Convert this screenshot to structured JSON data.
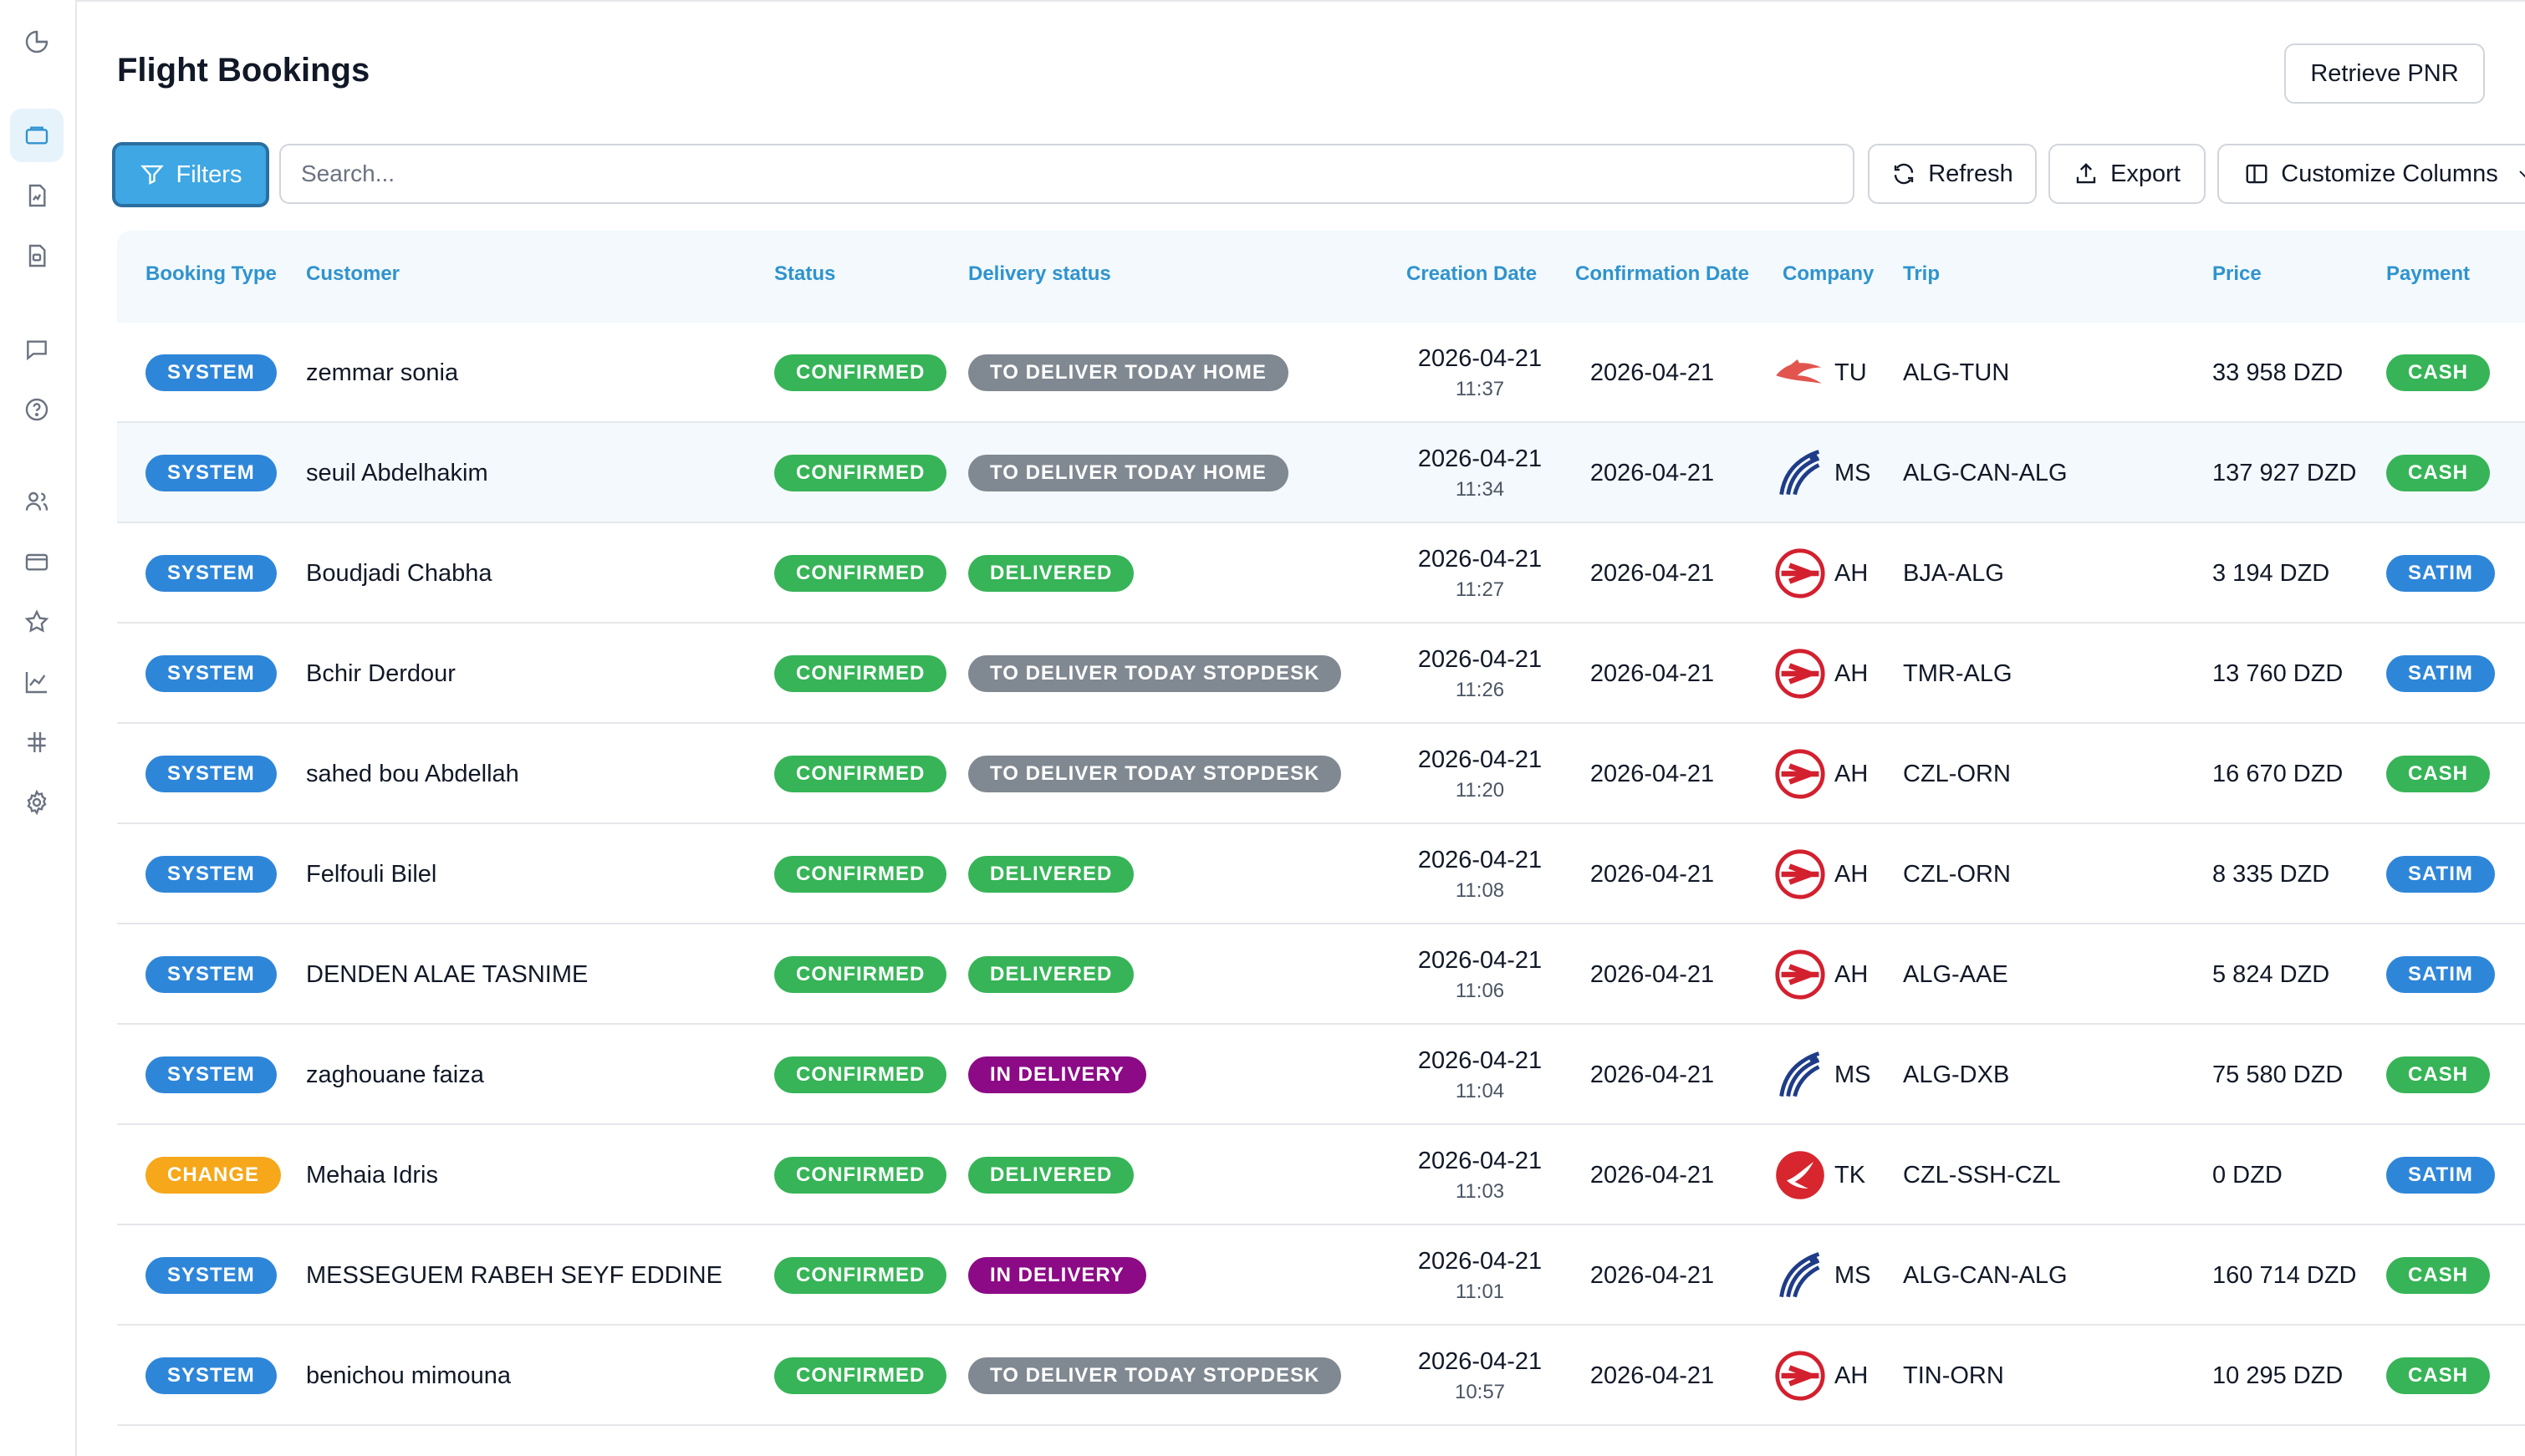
{
  "sidebar": {
    "icons": [
      "pie-chart-icon",
      "ticket-icon",
      "file-chart-icon",
      "file-ticket-icon",
      "message-icon",
      "help-icon",
      "users-icon",
      "card-icon",
      "star-icon",
      "line-chart-icon",
      "hash-icon",
      "gear-icon"
    ]
  },
  "header": {
    "title": "Flight Bookings",
    "retrieve_label": "Retrieve PNR"
  },
  "toolbar": {
    "filters_label": "Filters",
    "search_placeholder": "Search...",
    "refresh_label": "Refresh",
    "export_label": "Export",
    "columns_label": "Customize Columns"
  },
  "table": {
    "columns": {
      "booking_type": "Booking Type",
      "customer": "Customer",
      "status": "Status",
      "delivery": "Delivery status",
      "creation": "Creation Date",
      "confirmation": "Confirmation Date",
      "company": "Company",
      "trip": "Trip",
      "price": "Price",
      "payment": "Payment"
    },
    "rows": [
      {
        "type": "SYSTEM",
        "customer": "zemmar sonia",
        "status": "CONFIRMED",
        "delivery": "TO DELIVER TODAY HOME",
        "cdate": "2026-04-21",
        "ctime": "11:37",
        "confirm": "2026-04-21",
        "company": "TU",
        "logo": "tunisair",
        "trip": "ALG-TUN",
        "price": "33 958 DZD",
        "payment": "CASH"
      },
      {
        "type": "SYSTEM",
        "customer": "seuil Abdelhakim",
        "status": "CONFIRMED",
        "delivery": "TO DELIVER TODAY HOME",
        "cdate": "2026-04-21",
        "ctime": "11:34",
        "confirm": "2026-04-21",
        "company": "MS",
        "logo": "egyptair",
        "trip": "ALG-CAN-ALG",
        "price": "137 927 DZD",
        "payment": "CASH"
      },
      {
        "type": "SYSTEM",
        "customer": "Boudjadi Chabha",
        "status": "CONFIRMED",
        "delivery": "DELIVERED",
        "cdate": "2026-04-21",
        "ctime": "11:27",
        "confirm": "2026-04-21",
        "company": "AH",
        "logo": "airalgerie",
        "trip": "BJA-ALG",
        "price": "3 194 DZD",
        "payment": "SATIM"
      },
      {
        "type": "SYSTEM",
        "customer": "Bchir Derdour",
        "status": "CONFIRMED",
        "delivery": "TO DELIVER TODAY STOPDESK",
        "cdate": "2026-04-21",
        "ctime": "11:26",
        "confirm": "2026-04-21",
        "company": "AH",
        "logo": "airalgerie",
        "trip": "TMR-ALG",
        "price": "13 760 DZD",
        "payment": "SATIM"
      },
      {
        "type": "SYSTEM",
        "customer": "sahed bou Abdellah",
        "status": "CONFIRMED",
        "delivery": "TO DELIVER TODAY STOPDESK",
        "cdate": "2026-04-21",
        "ctime": "11:20",
        "confirm": "2026-04-21",
        "company": "AH",
        "logo": "airalgerie",
        "trip": "CZL-ORN",
        "price": "16 670 DZD",
        "payment": "CASH"
      },
      {
        "type": "SYSTEM",
        "customer": "Felfouli Bilel",
        "status": "CONFIRMED",
        "delivery": "DELIVERED",
        "cdate": "2026-04-21",
        "ctime": "11:08",
        "confirm": "2026-04-21",
        "company": "AH",
        "logo": "airalgerie",
        "trip": "CZL-ORN",
        "price": "8 335 DZD",
        "payment": "SATIM"
      },
      {
        "type": "SYSTEM",
        "customer": "DENDEN ALAE TASNIME",
        "status": "CONFIRMED",
        "delivery": "DELIVERED",
        "cdate": "2026-04-21",
        "ctime": "11:06",
        "confirm": "2026-04-21",
        "company": "AH",
        "logo": "airalgerie",
        "trip": "ALG-AAE",
        "price": "5 824 DZD",
        "payment": "SATIM"
      },
      {
        "type": "SYSTEM",
        "customer": "zaghouane faiza",
        "status": "CONFIRMED",
        "delivery": "IN DELIVERY",
        "cdate": "2026-04-21",
        "ctime": "11:04",
        "confirm": "2026-04-21",
        "company": "MS",
        "logo": "egyptair",
        "trip": "ALG-DXB",
        "price": "75 580 DZD",
        "payment": "CASH"
      },
      {
        "type": "CHANGE",
        "customer": "Mehaia Idris",
        "status": "CONFIRMED",
        "delivery": "DELIVERED",
        "cdate": "2026-04-21",
        "ctime": "11:03",
        "confirm": "2026-04-21",
        "company": "TK",
        "logo": "turkish",
        "trip": "CZL-SSH-CZL",
        "price": "0 DZD",
        "payment": "SATIM"
      },
      {
        "type": "SYSTEM",
        "customer": "MESSEGUEM RABEH SEYF EDDINE",
        "status": "CONFIRMED",
        "delivery": "IN DELIVERY",
        "cdate": "2026-04-21",
        "ctime": "11:01",
        "confirm": "2026-04-21",
        "company": "MS",
        "logo": "egyptair",
        "trip": "ALG-CAN-ALG",
        "price": "160 714 DZD",
        "payment": "CASH"
      },
      {
        "type": "SYSTEM",
        "customer": "benichou mimouna",
        "status": "CONFIRMED",
        "delivery": "TO DELIVER TODAY STOPDESK",
        "cdate": "2026-04-21",
        "ctime": "10:57",
        "confirm": "2026-04-21",
        "company": "AH",
        "logo": "airalgerie",
        "trip": "TIN-ORN",
        "price": "10 295 DZD",
        "payment": "CASH"
      }
    ]
  },
  "colors": {
    "accent": "#3ea7e4",
    "header_text": "#2f93cf",
    "system": "#2e86d9",
    "change": "#f6a71a",
    "confirmed": "#36b457",
    "pending_delivery": "#808891",
    "in_delivery": "#8c0a86"
  }
}
